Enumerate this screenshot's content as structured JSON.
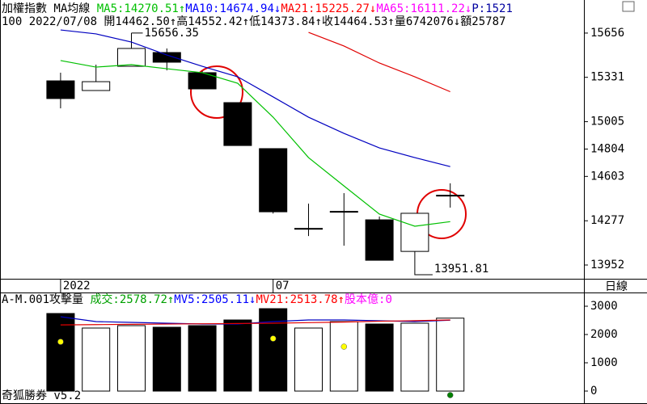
{
  "chart_data": {
    "type": "candlestick",
    "header": [
      {
        "text": "加權指數 MA均線 ",
        "color": "#000000"
      },
      {
        "text": "MA5:14270.51↑",
        "color": "#00c000"
      },
      {
        "text": "MA10:14674.94↓",
        "color": "#0000ff"
      },
      {
        "text": "MA21:15225.27↓",
        "color": "#ff0000"
      },
      {
        "text": "MA65:16111.22↓",
        "color": "#ff00ff"
      },
      {
        "text": "P:1521",
        "color": "#0000a0"
      }
    ],
    "info_line": "100 2022/07/08 開14462.50↑高14552.42↑低14373.84↑收14464.53↑量6742076↓額25787",
    "categories": [
      null,
      null,
      null,
      null,
      null,
      null,
      null,
      null,
      null,
      null,
      null,
      null
    ],
    "period_labels": [
      {
        "label": "2022",
        "at": 0
      },
      {
        "label": "07",
        "at": 6
      }
    ],
    "open": [
      15305,
      15234,
      15412,
      15513,
      15365,
      15145,
      14807,
      14215,
      14340,
      14284,
      14052,
      14462.5
    ],
    "high": [
      15365,
      15424,
      15656.35,
      15543,
      15377,
      15145,
      14807,
      14403,
      14480,
      14308,
      14332,
      14552.42
    ],
    "low": [
      15103,
      15234,
      15412,
      15382,
      15246,
      14830,
      14330,
      14165,
      14094,
      13987,
      13951.81,
      14373.84
    ],
    "close": [
      15175,
      15299,
      15543,
      15442,
      15246,
      14830,
      14343,
      14221,
      14346,
      13987,
      14332,
      14464.53
    ],
    "up_color": "#ffffff",
    "down_color": "#000000",
    "series": [
      {
        "color": "#00c000",
        "values": [
          15454,
          15406,
          15424,
          15394,
          15365,
          15287,
          15038,
          14741,
          14533,
          14326,
          14237,
          14270.51
        ]
      },
      {
        "color": "#0000c0",
        "values": [
          15679,
          15650,
          15590,
          15495,
          15412,
          15335,
          15187,
          15038,
          14919,
          14812,
          14741,
          14674.94
        ]
      },
      {
        "color": "#e00000",
        "values": [
          null,
          null,
          null,
          null,
          null,
          null,
          null,
          15661,
          15561,
          15436,
          15335,
          15225.27
        ]
      }
    ],
    "annotations": [
      {
        "text": "15656.35",
        "at": 2,
        "value": 15656.35
      },
      {
        "text": "13951.81",
        "at": 10,
        "value": 13951.81
      }
    ],
    "ylim": [
      13851,
      15899
    ],
    "yticks": [
      15656,
      15331,
      15005,
      14804,
      14603,
      14277,
      13952
    ],
    "timeframe": "日線",
    "footer": "奇狐勝券 v5.2",
    "volume": {
      "type": "bar",
      "header": [
        {
          "text": "A-M.001攻擊量 ",
          "color": "#000000"
        },
        {
          "text": "成交:2578.72↑",
          "color": "#00a000"
        },
        {
          "text": "MV5:2505.11↓",
          "color": "#0000ff"
        },
        {
          "text": "MV21:2513.78↑",
          "color": "#ff0000"
        },
        {
          "text": "股本億:0",
          "color": "#ff00ff"
        }
      ],
      "values": [
        2743,
        2229,
        2314,
        2257,
        2314,
        2514,
        2914,
        2229,
        2457,
        2371,
        2400,
        2578.72
      ],
      "series": [
        {
          "color": "#0000c0",
          "values": [
            2629,
            2457,
            2429,
            2400,
            2371,
            2371,
            2457,
            2514,
            2514,
            2486,
            2457,
            2505.11
          ]
        },
        {
          "color": "#e00000",
          "values": [
            2340,
            2350,
            2360,
            2370,
            2380,
            2390,
            2400,
            2420,
            2440,
            2470,
            2490,
            2513.78
          ]
        }
      ],
      "markers": {
        "values": [
          1743,
          null,
          null,
          null,
          null,
          null,
          1857,
          null,
          1571,
          null,
          null,
          -143
        ],
        "colors": [
          "#ffff00",
          null,
          null,
          null,
          null,
          null,
          "#ffff00",
          null,
          "#ffff00",
          null,
          null,
          "#008000"
        ]
      },
      "ylim": [
        -371,
        3400
      ],
      "yticks": [
        3000,
        2000,
        1000,
        0
      ]
    }
  }
}
